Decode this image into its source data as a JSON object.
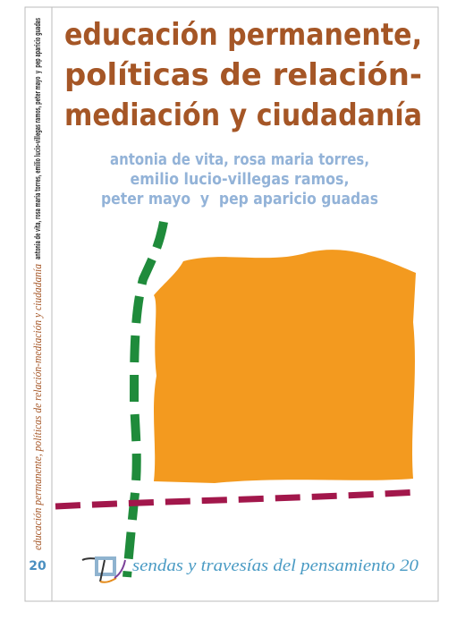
{
  "title": [
    "educación permanente,",
    "políticas de relación-",
    "mediación y ciudadanía"
  ],
  "authors": [
    "antonia de vita, rosa maria torres,",
    "emilio lucio-villegas ramos,",
    "peter mayo  y  pep aparicio guadas"
  ],
  "spine": {
    "authors": "antonia de vita, rosa maria torres, emilio lucio-villegas ramos, peter mayo  y  pep aparicio guadas",
    "title": "educación permanente, políticas de relación-mediación y ciudadanía",
    "number": "20"
  },
  "series": "sendas y travesías del pensamiento 20"
}
